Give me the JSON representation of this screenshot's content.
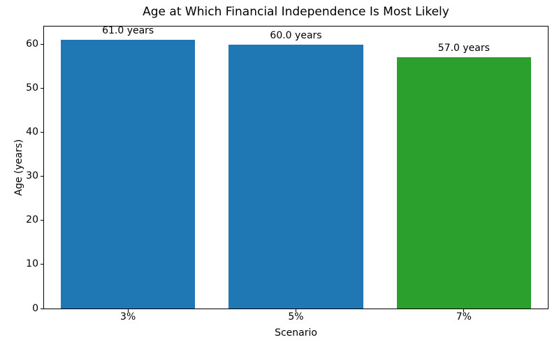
{
  "chart_data": {
    "type": "bar",
    "title": "Age at Which Financial Independence Is Most Likely",
    "xlabel": "Scenario",
    "ylabel": "Age (years)",
    "categories": [
      "3%",
      "5%",
      "7%"
    ],
    "values": [
      61.0,
      60.0,
      57.0
    ],
    "bar_labels": [
      "61.0 years",
      "60.0 years",
      "57.0 years"
    ],
    "bar_colors": [
      "#1f77b4",
      "#1f77b4",
      "#2ca02c"
    ],
    "ylim": [
      0,
      64.05
    ],
    "yticks": [
      0,
      10,
      20,
      30,
      40,
      50,
      60
    ],
    "grid": false,
    "legend_position": "none",
    "bar_width_fraction": 0.8,
    "axis_color": "#000000",
    "background_color": "#ffffff"
  }
}
